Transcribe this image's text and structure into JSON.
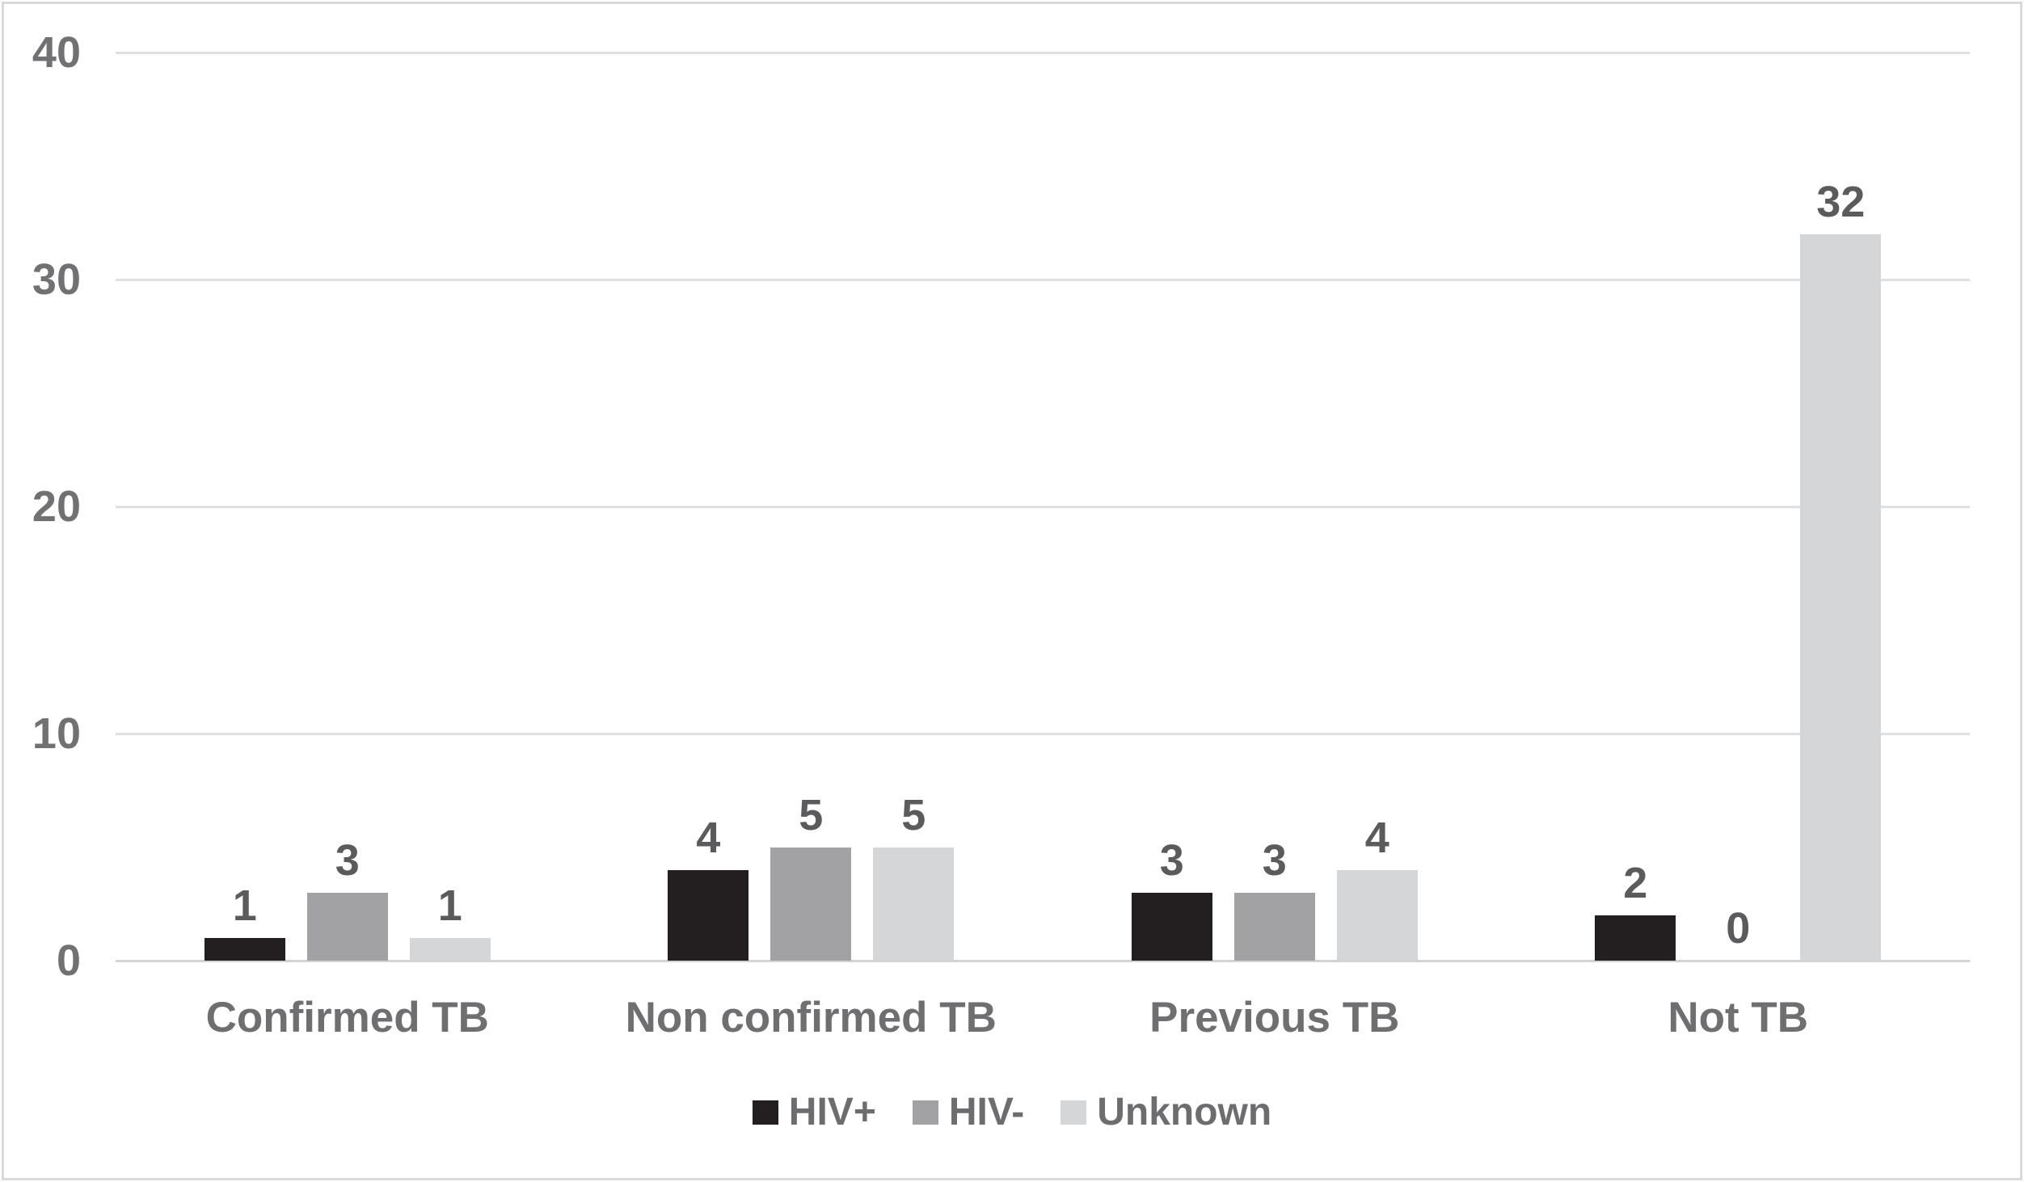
{
  "chart_data": {
    "type": "bar",
    "title": "",
    "categories": [
      "Confirmed TB",
      "Non confirmed TB",
      "Previous TB",
      "Not TB"
    ],
    "series": [
      {
        "id": "hiv-positive",
        "name": "HIV+",
        "color": "#231f20",
        "values": [
          1,
          4,
          3,
          2
        ]
      },
      {
        "id": "hiv-negative",
        "name": "HIV-",
        "color": "#a2a2a4",
        "values": [
          3,
          5,
          3,
          0
        ]
      },
      {
        "id": "unknown",
        "name": "Unknown",
        "color": "#d5d6d8",
        "values": [
          1,
          5,
          4,
          32
        ]
      }
    ],
    "y_axis": {
      "min": 0,
      "max": 40,
      "tick_step": 10,
      "ticks": [
        0,
        10,
        20,
        30,
        40
      ]
    },
    "grid": true,
    "data_labels_shown": true,
    "legend_position": "bottom"
  },
  "style": {
    "gridline_color": "#dee0e1",
    "axis_line_color": "#d2d3d5",
    "tick_label_color": "#717174",
    "category_label_color": "#6f6f72",
    "data_label_color": "#5b5b5e",
    "legend_text_color": "#6d6d70",
    "frame_border_color": "#d7d9db",
    "background_color": "#ffffff"
  }
}
